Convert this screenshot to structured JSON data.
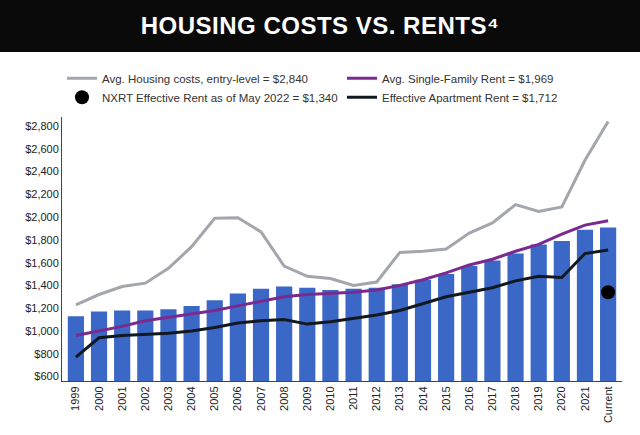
{
  "chart_data": {
    "type": "bar",
    "title": "HOUSING COSTS VS. RENTS⁴",
    "categories": [
      "1999",
      "2000",
      "2001",
      "2002",
      "2003",
      "2004",
      "2005",
      "2006",
      "2007",
      "2008",
      "2009",
      "2010",
      "2011",
      "2012",
      "2013",
      "2014",
      "2015",
      "2016",
      "2017",
      "2018",
      "2019",
      "2020",
      "2021",
      "Current"
    ],
    "series": [
      {
        "type": "bar",
        "color": "#3b68c6",
        "values": [
          1130,
          1170,
          1180,
          1180,
          1190,
          1220,
          1270,
          1330,
          1370,
          1390,
          1380,
          1360,
          1370,
          1380,
          1410,
          1450,
          1500,
          1570,
          1620,
          1680,
          1760,
          1790,
          1890,
          1910
        ]
      },
      {
        "name": "Avg. Housing costs, entry-level = $2,840",
        "type": "line",
        "color": "#a3a6ad",
        "line_style": "solid",
        "values": [
          1230,
          1320,
          1390,
          1420,
          1550,
          1740,
          1990,
          1995,
          1870,
          1570,
          1480,
          1460,
          1400,
          1430,
          1690,
          1700,
          1720,
          1860,
          1950,
          2110,
          2050,
          2090,
          2500,
          2840
        ]
      },
      {
        "name": "Avg. Single-Family Rent = $1,969",
        "type": "line",
        "color": "#7a2a8e",
        "line_style": "solid",
        "values": [
          960,
          1000,
          1040,
          1090,
          1120,
          1150,
          1180,
          1220,
          1260,
          1300,
          1320,
          1330,
          1340,
          1360,
          1400,
          1450,
          1510,
          1580,
          1630,
          1700,
          1760,
          1850,
          1930,
          1969
        ]
      },
      {
        "name": "NXRT Effective Rent as of May 2022 = $1,340",
        "type": "scatter",
        "color": "#000000",
        "marker": "circle",
        "values": [
          null,
          null,
          null,
          null,
          null,
          null,
          null,
          null,
          null,
          null,
          null,
          null,
          null,
          null,
          null,
          null,
          null,
          null,
          null,
          null,
          null,
          null,
          null,
          1340
        ]
      },
      {
        "name": "Effective Apartment Rent = $1,712",
        "type": "line",
        "color": "#111820",
        "line_style": "solid",
        "values": [
          770,
          940,
          960,
          970,
          980,
          1000,
          1030,
          1070,
          1090,
          1100,
          1060,
          1080,
          1110,
          1140,
          1180,
          1240,
          1300,
          1340,
          1380,
          1440,
          1480,
          1470,
          1680,
          1712
        ]
      }
    ],
    "ylim": [
      560,
      2880
    ],
    "yticks": [
      {
        "value": 600,
        "label": "$600"
      },
      {
        "value": 800,
        "label": "$800"
      },
      {
        "value": 1000,
        "label": "$1,000"
      },
      {
        "value": 1200,
        "label": "$1,200"
      },
      {
        "value": 1400,
        "label": "$1,400"
      },
      {
        "value": 1600,
        "label": "$1,600"
      },
      {
        "value": 1800,
        "label": "$1,800"
      },
      {
        "value": 2000,
        "label": "$2,000"
      },
      {
        "value": 2200,
        "label": "$2,200"
      },
      {
        "value": 2400,
        "label": "$2,400"
      },
      {
        "value": 2600,
        "label": "$2,600"
      },
      {
        "value": 2800,
        "label": "$2,800"
      }
    ],
    "grid": false,
    "legend": "top"
  }
}
